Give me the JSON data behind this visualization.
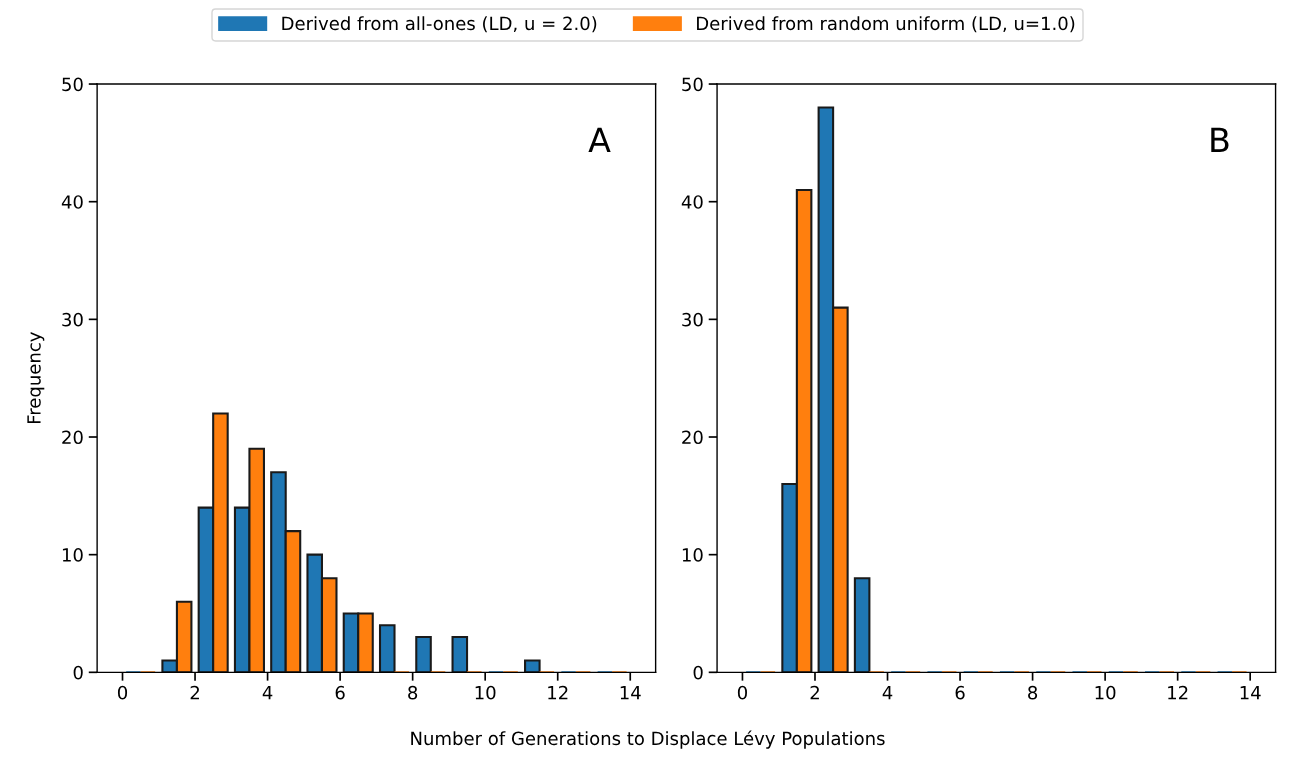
{
  "chart_data": [
    {
      "type": "histogram",
      "ylabel": "Frequency",
      "xlabel": "Number of Generations to Displace Lévy Populations",
      "annotations": [
        "A"
      ],
      "legend": "top",
      "grid": false,
      "bins": [
        0,
        1,
        2,
        3,
        4,
        5,
        6,
        7,
        8,
        9,
        10,
        11,
        12,
        13,
        14
      ],
      "series": [
        {
          "name": "Derived from all-ones (LD, u = 2.0)",
          "color": "#1f77b4",
          "values": [
            0,
            1,
            14,
            14,
            17,
            10,
            5,
            4,
            3,
            3,
            0,
            1,
            0,
            0
          ]
        },
        {
          "name": "Derived from random uniform (LD, u=1.0)",
          "color": "#ff7f0e",
          "values": [
            0,
            6,
            22,
            19,
            12,
            8,
            5,
            0,
            0,
            0,
            0,
            0,
            0,
            0
          ]
        }
      ],
      "xlim": [
        -0.7,
        14.7
      ],
      "xticks": [
        0,
        2,
        4,
        6,
        8,
        10,
        12,
        14
      ],
      "ylim": [
        0,
        50
      ],
      "yticks": [
        0,
        10,
        20,
        30,
        40,
        50
      ]
    },
    {
      "type": "histogram",
      "annotations": [
        "B"
      ],
      "grid": false,
      "bins": [
        0,
        1,
        2,
        3,
        4,
        5,
        6,
        7,
        8,
        9,
        10,
        11,
        12,
        13,
        14
      ],
      "series": [
        {
          "color": "#1f77b4",
          "values": [
            0,
            16,
            48,
            8,
            0,
            0,
            0,
            0,
            0,
            0,
            0,
            0,
            0,
            0
          ]
        },
        {
          "color": "#ff7f0e",
          "values": [
            0,
            41,
            31,
            0,
            0,
            0,
            0,
            0,
            0,
            0,
            0,
            0,
            0,
            0
          ]
        }
      ],
      "xlim": [
        -0.7,
        14.7
      ],
      "xticks": [
        0,
        2,
        4,
        6,
        8,
        10,
        12,
        14
      ],
      "ylim": [
        0,
        50
      ],
      "yticks": [
        0,
        10,
        20,
        30,
        40,
        50
      ]
    }
  ]
}
